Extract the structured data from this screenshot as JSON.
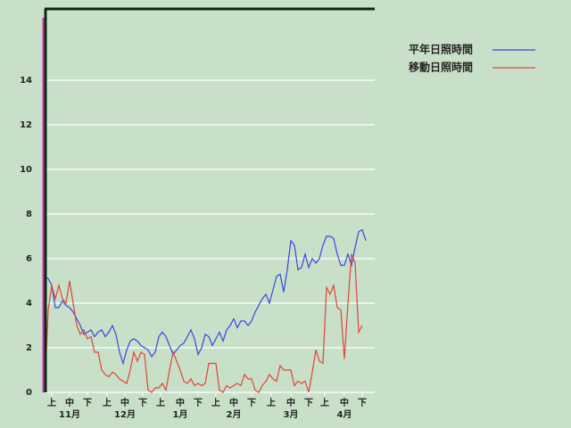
{
  "chart_data": {
    "type": "line",
    "series": [
      {
        "name": "平年日照時間",
        "color": "#3a46e0",
        "values": [
          5.2,
          5.1,
          4.8,
          3.8,
          3.8,
          4.1,
          3.9,
          3.8,
          3.6,
          3.3,
          3.0,
          2.6,
          2.7,
          2.8,
          2.5,
          2.7,
          2.8,
          2.5,
          2.7,
          3.0,
          2.6,
          1.8,
          1.3,
          1.9,
          2.3,
          2.4,
          2.3,
          2.1,
          2.0,
          1.9,
          1.6,
          1.8,
          2.5,
          2.7,
          2.5,
          2.1,
          1.7,
          1.9,
          2.1,
          2.2,
          2.5,
          2.8,
          2.4,
          1.7,
          2.0,
          2.6,
          2.5,
          2.1,
          2.4,
          2.7,
          2.3,
          2.8,
          3.0,
          3.3,
          2.9,
          3.2,
          3.2,
          3.0,
          3.2,
          3.6,
          3.9,
          4.2,
          4.4,
          4.0,
          4.6,
          5.2,
          5.3,
          4.5,
          5.5,
          6.8,
          6.6,
          5.5,
          5.6,
          6.2,
          5.6,
          6.0,
          5.8,
          6.0,
          6.6,
          7.0,
          7.0,
          6.9,
          6.2,
          5.7,
          5.7,
          6.2,
          5.7,
          6.5,
          7.2,
          7.3,
          6.8
        ]
      },
      {
        "name": "移動日照時間",
        "color": "#e0443a",
        "values": [
          0,
          3.7,
          4.8,
          4.2,
          4.8,
          4.2,
          4.0,
          5.0,
          4.0,
          3.0,
          2.6,
          2.8,
          2.4,
          2.5,
          1.8,
          1.8,
          1.0,
          0.8,
          0.7,
          0.9,
          0.8,
          0.6,
          0.5,
          0.4,
          1.0,
          1.8,
          1.4,
          1.8,
          1.7,
          0.1,
          0.0,
          0.2,
          0.2,
          0.4,
          0.1,
          1.0,
          1.8,
          1.4,
          1.0,
          0.5,
          0.4,
          0.6,
          0.3,
          0.4,
          0.3,
          0.4,
          1.3,
          1.3,
          1.3,
          0.1,
          0.0,
          0.3,
          0.2,
          0.3,
          0.4,
          0.3,
          0.8,
          0.6,
          0.6,
          0.1,
          0.0,
          0.3,
          0.5,
          0.8,
          0.6,
          0.5,
          1.2,
          1.0,
          1.0,
          1.0,
          0.3,
          0.5,
          0.4,
          0.5,
          0.0,
          0.9,
          1.9,
          1.4,
          1.3,
          4.7,
          4.4,
          4.8,
          3.8,
          3.7,
          1.5,
          4.0,
          6.2,
          5.8,
          2.7,
          3.0,
          null
        ]
      }
    ],
    "x": [
      0,
      2,
      4,
      6,
      8,
      10,
      12,
      14,
      16,
      18,
      20,
      22,
      24,
      26,
      28,
      30,
      32,
      34,
      36,
      38,
      40,
      42,
      44,
      46,
      48,
      50,
      52,
      54,
      56,
      58,
      60,
      62,
      64,
      66,
      68,
      70,
      72,
      74,
      76,
      78,
      80,
      82,
      84,
      86,
      88,
      90,
      92,
      94,
      96,
      98,
      100,
      102,
      104,
      106,
      108,
      110,
      112,
      114,
      116,
      118,
      120,
      122,
      124,
      126,
      128,
      130,
      132,
      134,
      136,
      138,
      140,
      142,
      144,
      146,
      148,
      150,
      152,
      154,
      156,
      158,
      160,
      162,
      164,
      166,
      168,
      170,
      172,
      174,
      176,
      178,
      180
    ],
    "xlim": [
      0,
      185
    ],
    "xticks": [
      {
        "value": 4,
        "label": "上"
      },
      {
        "value": 14,
        "label": "中"
      },
      {
        "value": 24,
        "label": "下"
      },
      {
        "value": 35,
        "label": "上"
      },
      {
        "value": 45,
        "label": "中"
      },
      {
        "value": 55,
        "label": "下"
      },
      {
        "value": 65,
        "label": "上"
      },
      {
        "value": 76,
        "label": "中"
      },
      {
        "value": 86,
        "label": "下"
      },
      {
        "value": 96,
        "label": "上"
      },
      {
        "value": 106,
        "label": "中"
      },
      {
        "value": 116,
        "label": "下"
      },
      {
        "value": 127,
        "label": "上"
      },
      {
        "value": 138,
        "label": "中"
      },
      {
        "value": 148,
        "label": "下"
      },
      {
        "value": 157,
        "label": "上"
      },
      {
        "value": 168,
        "label": "中"
      },
      {
        "value": 178,
        "label": "下"
      }
    ],
    "month_ticks": [
      {
        "value": 14,
        "label": "11月"
      },
      {
        "value": 45,
        "label": "12月"
      },
      {
        "value": 76,
        "label": "1月"
      },
      {
        "value": 106,
        "label": "2月"
      },
      {
        "value": 138,
        "label": "3月"
      },
      {
        "value": 168,
        "label": "4月"
      }
    ],
    "ylim": [
      0,
      17.2
    ],
    "yticks": [
      0,
      2,
      4,
      6,
      8,
      10,
      12,
      14
    ],
    "grid": true
  }
}
